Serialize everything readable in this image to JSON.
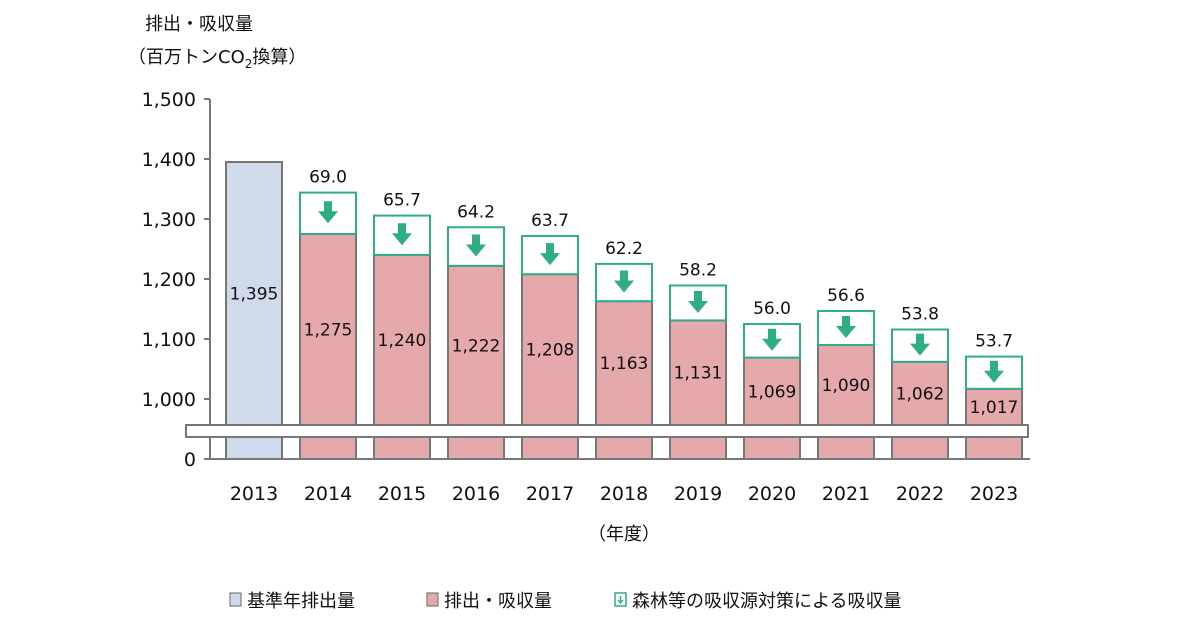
{
  "chart_data": {
    "type": "bar",
    "ylabel_line1": "排出・吸収量",
    "ylabel_line2_prefix": "（百万トンCO",
    "ylabel_line2_sub": "2",
    "ylabel_line2_suffix": "換算）",
    "xlabel": "（年度）",
    "categories": [
      "2013",
      "2014",
      "2015",
      "2016",
      "2017",
      "2018",
      "2019",
      "2020",
      "2021",
      "2022",
      "2023"
    ],
    "yticks": [
      0,
      1000,
      1100,
      1200,
      1300,
      1400,
      1500
    ],
    "ytick_labels": [
      "0",
      "1,000",
      "1,100",
      "1,200",
      "1,300",
      "1,400",
      "1,500"
    ],
    "ylim": [
      1000,
      1500
    ],
    "axis_break": true,
    "series": [
      {
        "name": "基準年排出量",
        "values": [
          1395,
          null,
          null,
          null,
          null,
          null,
          null,
          null,
          null,
          null,
          null
        ],
        "labels": [
          "1,395",
          "",
          "",
          "",
          "",
          "",
          "",
          "",
          "",
          "",
          ""
        ],
        "color": "#cfdbea"
      },
      {
        "name": "排出・吸収量",
        "values": [
          null,
          1275,
          1240,
          1222,
          1208,
          1163,
          1131,
          1069,
          1090,
          1062,
          1017
        ],
        "labels": [
          "",
          "1,275",
          "1,240",
          "1,222",
          "1,208",
          "1,163",
          "1,131",
          "1,069",
          "1,090",
          "1,062",
          "1,017"
        ],
        "color": "#e5a9ac"
      },
      {
        "name": "森林等の吸収源対策による吸収量",
        "values": [
          null,
          69.0,
          65.7,
          64.2,
          63.7,
          62.2,
          58.2,
          56.0,
          56.6,
          53.8,
          53.7
        ],
        "labels": [
          "",
          "69.0",
          "65.7",
          "64.2",
          "63.7",
          "62.2",
          "58.2",
          "56.0",
          "56.6",
          "53.8",
          "53.7"
        ],
        "color": "#2fae86"
      }
    ],
    "legend": "bottom",
    "grid": false
  }
}
